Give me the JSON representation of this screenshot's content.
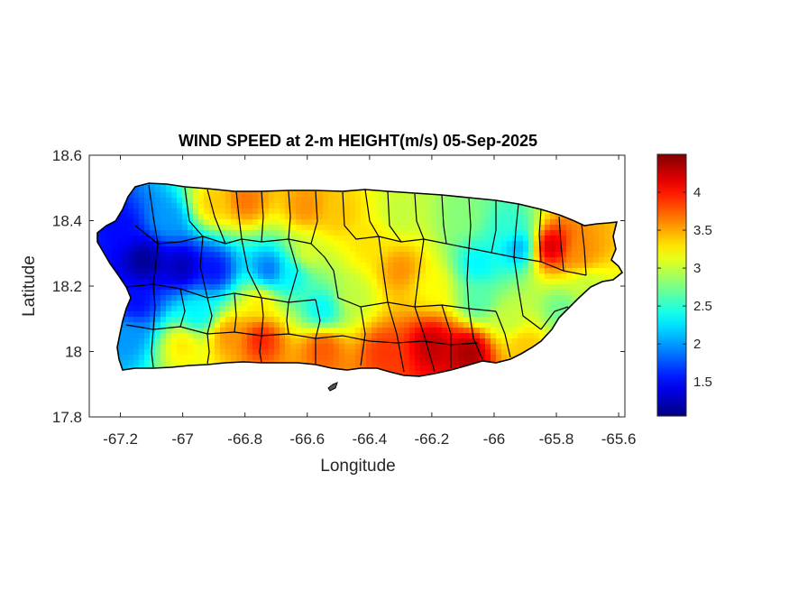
{
  "chart_data": {
    "type": "heatmap",
    "title": "WIND SPEED at 2-m HEIGHT(m/s) 05-Sep-2025",
    "xlabel": "Longitude",
    "ylabel": "Latitude",
    "xlim": [
      -67.3,
      -65.58
    ],
    "ylim": [
      17.8,
      18.6
    ],
    "xticks": [
      -67.2,
      -67,
      -66.8,
      -66.6,
      -66.4,
      -66.2,
      -66,
      -65.8,
      -65.6
    ],
    "xtick_labels": [
      "-67.2",
      "-67",
      "-66.8",
      "-66.6",
      "-66.4",
      "-66.2",
      "-66",
      "-65.8",
      "-65.6"
    ],
    "yticks": [
      17.8,
      18,
      18.2,
      18.4,
      18.6
    ],
    "ytick_labels": [
      "17.8",
      "18",
      "18.2",
      "18.4",
      "18.6"
    ],
    "colorbar": {
      "colormap": "jet",
      "clim": [
        1.05,
        4.5
      ],
      "ticks": [
        1.5,
        2,
        2.5,
        3,
        3.5,
        4
      ],
      "tick_labels": [
        "1.5",
        "2",
        "2.5",
        "3",
        "3.5",
        "4"
      ]
    },
    "field_centers": [
      {
        "lon": -67.12,
        "lat": 18.28,
        "value": 1.1
      },
      {
        "lon": -67.0,
        "lat": 18.26,
        "value": 1.2
      },
      {
        "lon": -66.9,
        "lat": 18.25,
        "value": 1.5
      },
      {
        "lon": -67.15,
        "lat": 18.15,
        "value": 1.5
      },
      {
        "lon": -67.18,
        "lat": 18.05,
        "value": 2.0
      },
      {
        "lon": -67.2,
        "lat": 18.38,
        "value": 1.5
      },
      {
        "lon": -67.05,
        "lat": 18.4,
        "value": 2.0
      },
      {
        "lon": -66.72,
        "lat": 18.25,
        "value": 1.8
      },
      {
        "lon": -66.65,
        "lat": 18.24,
        "value": 2.3
      },
      {
        "lon": -66.9,
        "lat": 18.45,
        "value": 3.4
      },
      {
        "lon": -66.8,
        "lat": 18.46,
        "value": 3.7
      },
      {
        "lon": -66.6,
        "lat": 18.44,
        "value": 3.6
      },
      {
        "lon": -66.5,
        "lat": 18.42,
        "value": 3.4
      },
      {
        "lon": -66.3,
        "lat": 18.42,
        "value": 3.0
      },
      {
        "lon": -66.1,
        "lat": 18.41,
        "value": 2.8
      },
      {
        "lon": -65.95,
        "lat": 18.38,
        "value": 2.5
      },
      {
        "lon": -65.92,
        "lat": 18.32,
        "value": 2.0
      },
      {
        "lon": -66.05,
        "lat": 18.27,
        "value": 2.3
      },
      {
        "lon": -65.82,
        "lat": 18.32,
        "value": 4.3
      },
      {
        "lon": -65.72,
        "lat": 18.3,
        "value": 3.6
      },
      {
        "lon": -65.7,
        "lat": 18.2,
        "value": 3.0
      },
      {
        "lon": -65.78,
        "lat": 18.13,
        "value": 2.7
      },
      {
        "lon": -66.2,
        "lat": 18.02,
        "value": 4.3
      },
      {
        "lon": -66.08,
        "lat": 18.0,
        "value": 4.4
      },
      {
        "lon": -66.35,
        "lat": 18.0,
        "value": 3.9
      },
      {
        "lon": -66.55,
        "lat": 18.01,
        "value": 3.8
      },
      {
        "lon": -66.75,
        "lat": 18.04,
        "value": 4.0
      },
      {
        "lon": -66.85,
        "lat": 18.05,
        "value": 3.6
      },
      {
        "lon": -67.0,
        "lat": 18.02,
        "value": 3.3
      },
      {
        "lon": -66.55,
        "lat": 18.13,
        "value": 2.3
      },
      {
        "lon": -66.45,
        "lat": 18.17,
        "value": 3.0
      },
      {
        "lon": -66.3,
        "lat": 18.25,
        "value": 3.6
      },
      {
        "lon": -66.2,
        "lat": 18.2,
        "value": 3.2
      },
      {
        "lon": -66.05,
        "lat": 18.15,
        "value": 2.6
      },
      {
        "lon": -65.95,
        "lat": 18.1,
        "value": 3.0
      },
      {
        "lon": -65.9,
        "lat": 18.02,
        "value": 3.4
      },
      {
        "lon": -66.6,
        "lat": 18.3,
        "value": 3.1
      },
      {
        "lon": -66.4,
        "lat": 18.33,
        "value": 3.3
      },
      {
        "lon": -66.95,
        "lat": 18.12,
        "value": 2.3
      },
      {
        "lon": -66.75,
        "lat": 18.15,
        "value": 3.3
      }
    ],
    "background_value": 3.1
  }
}
